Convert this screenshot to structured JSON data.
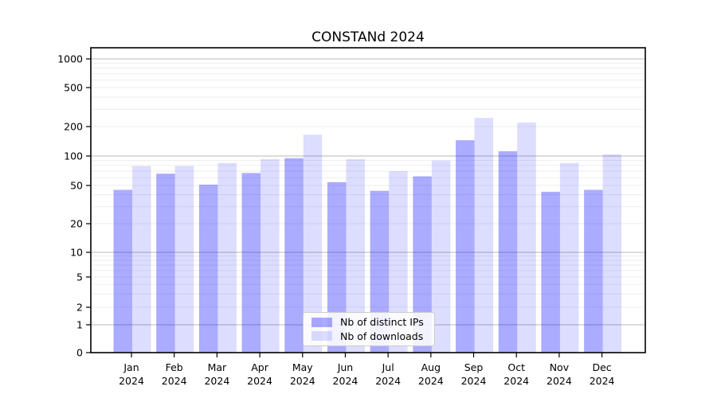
{
  "chart_data": {
    "type": "bar",
    "title": "CONSTANd 2024",
    "categories": [
      "Jan",
      "Feb",
      "Mar",
      "Apr",
      "May",
      "Jun",
      "Jul",
      "Aug",
      "Sep",
      "Oct",
      "Nov",
      "Dec"
    ],
    "category_year": "2024",
    "series": [
      {
        "name": "Nb of distinct IPs",
        "color": "rgba(0,0,255,0.33)",
        "values": [
          45,
          66,
          51,
          67,
          95,
          54,
          44,
          62,
          145,
          112,
          43,
          45
        ]
      },
      {
        "name": "Nb of downloads",
        "color": "rgba(0,0,255,0.135)",
        "values": [
          79,
          79,
          85,
          93,
          165,
          93,
          70,
          90,
          245,
          220,
          85,
          104
        ]
      }
    ],
    "y_ticks": [
      0,
      1,
      2,
      5,
      10,
      20,
      50,
      100,
      200,
      500,
      1000
    ],
    "y_minor_gridlines": [
      3,
      4,
      6,
      7,
      8,
      9,
      30,
      40,
      60,
      70,
      80,
      90,
      300,
      400,
      600,
      700,
      800,
      900
    ],
    "y_major_gridlines": [
      1,
      10,
      100,
      1000
    ],
    "scale": "symlog",
    "ylim": [
      0,
      1200
    ],
    "xlabel": "",
    "ylabel": "",
    "grid": true,
    "legend_position": "lower center",
    "colors": {
      "major_grid": "#b8b8b8",
      "minor_grid": "#e9e9e9",
      "spine": "#000000"
    }
  }
}
